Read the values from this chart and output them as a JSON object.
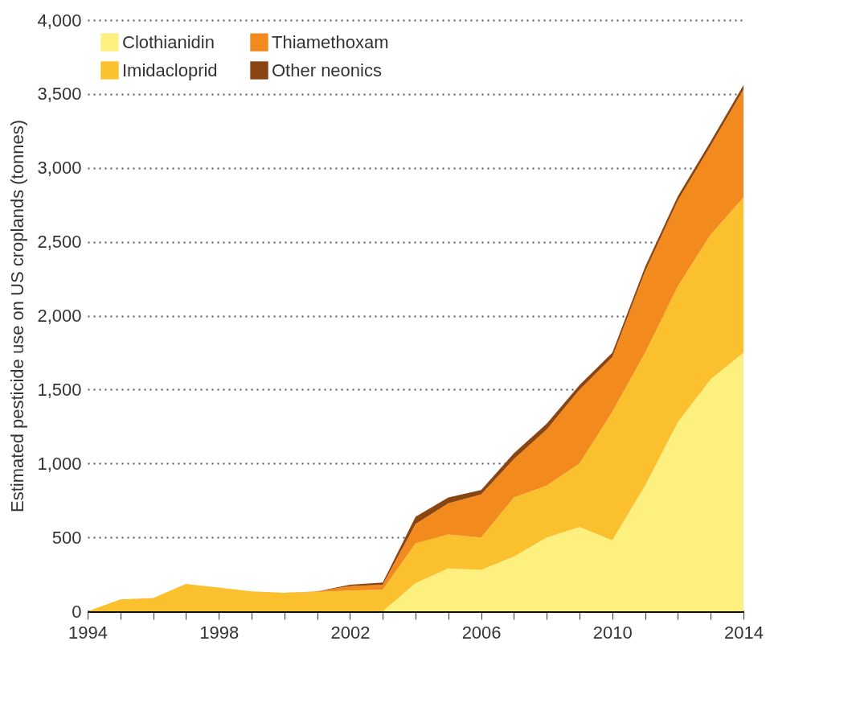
{
  "chart_data": {
    "type": "area",
    "stacked": true,
    "ylabel": "Estimated pesticide use on US croplands (tonnes)",
    "x": [
      1994,
      1995,
      1996,
      1997,
      1998,
      1999,
      2000,
      2001,
      2002,
      2003,
      2004,
      2005,
      2006,
      2007,
      2008,
      2009,
      2010,
      2011,
      2012,
      2013,
      2014
    ],
    "series": [
      {
        "name": "Clothianidin",
        "color": "#fdf07f",
        "values": [
          0,
          0,
          0,
          0,
          0,
          0,
          0,
          0,
          0,
          0,
          190,
          290,
          280,
          370,
          500,
          570,
          480,
          850,
          1280,
          1570,
          1750
        ]
      },
      {
        "name": "Imidacloprid",
        "color": "#fbc02d",
        "values": [
          0,
          80,
          90,
          185,
          160,
          135,
          125,
          130,
          140,
          145,
          270,
          230,
          220,
          400,
          350,
          430,
          870,
          900,
          920,
          980,
          1050
        ]
      },
      {
        "name": "Thiamethoxam",
        "color": "#f28a1e",
        "values": [
          0,
          0,
          0,
          0,
          0,
          0,
          0,
          5,
          30,
          35,
          130,
          210,
          290,
          260,
          380,
          500,
          370,
          550,
          580,
          600,
          730
        ]
      },
      {
        "name": "Other neonics",
        "color": "#8b4513",
        "values": [
          0,
          0,
          0,
          0,
          0,
          0,
          0,
          0,
          10,
          15,
          50,
          40,
          30,
          40,
          40,
          30,
          30,
          30,
          30,
          30,
          30
        ]
      }
    ],
    "xlim": [
      1994,
      2014
    ],
    "xticks": [
      1994,
      {
        "value": 1995,
        "label": null
      },
      {
        "value": 1996,
        "label": null
      },
      {
        "value": 1997,
        "label": null
      },
      1998,
      {
        "value": 1999,
        "label": null
      },
      {
        "value": 2000,
        "label": null
      },
      {
        "value": 2001,
        "label": null
      },
      2002,
      {
        "value": 2003,
        "label": null
      },
      {
        "value": 2004,
        "label": null
      },
      {
        "value": 2005,
        "label": null
      },
      2006,
      {
        "value": 2007,
        "label": null
      },
      {
        "value": 2008,
        "label": null
      },
      {
        "value": 2009,
        "label": null
      },
      2010,
      {
        "value": 2011,
        "label": null
      },
      {
        "value": 2012,
        "label": null
      },
      {
        "value": 2013,
        "label": null
      },
      2014
    ],
    "ylim": [
      0,
      4000
    ],
    "yticks": [
      {
        "value": 0,
        "label": "0"
      },
      {
        "value": 500,
        "label": "500"
      },
      {
        "value": 1000,
        "label": "1,000"
      },
      {
        "value": 1500,
        "label": "1,500"
      },
      {
        "value": 2000,
        "label": "2,000"
      },
      {
        "value": 2500,
        "label": "2,500"
      },
      {
        "value": 3000,
        "label": "3,000"
      },
      {
        "value": 3500,
        "label": "3,500"
      },
      {
        "value": 4000,
        "label": "4,000"
      }
    ],
    "grid": "y",
    "legend": "top left"
  }
}
